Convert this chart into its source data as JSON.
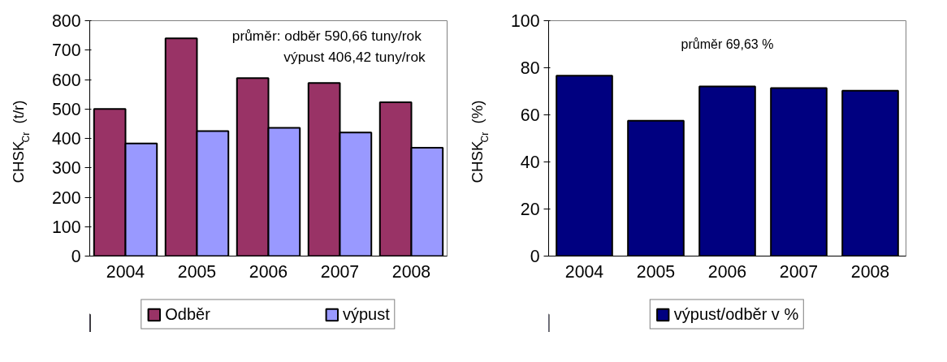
{
  "chart_data": [
    {
      "type": "bar",
      "categories": [
        "2004",
        "2005",
        "2006",
        "2007",
        "2008"
      ],
      "ylabel": "CHSK$_{Cr}$ (t/r)",
      "ylim": [
        0,
        800
      ],
      "yticks": [
        0,
        100,
        200,
        300,
        400,
        500,
        600,
        700,
        800
      ],
      "legend": "bottom",
      "grid": false,
      "series": [
        {
          "name": "Odběr",
          "color": "#993366",
          "values": [
            500,
            740,
            605,
            588,
            523
          ]
        },
        {
          "name": "výpust",
          "color": "#9999ff",
          "values": [
            383,
            425,
            436,
            420,
            368
          ]
        }
      ],
      "annotations": [
        "průměr: odběr   590,66 tuny/rok",
        "výpust  406,42 tuny/rok"
      ]
    },
    {
      "type": "bar",
      "categories": [
        "2004",
        "2005",
        "2006",
        "2007",
        "2008"
      ],
      "ylabel": "CHSK$_{Cr}$ (%)",
      "ylim": [
        0,
        100
      ],
      "yticks": [
        0,
        20,
        40,
        60,
        80,
        100
      ],
      "legend": "bottom",
      "grid": false,
      "series": [
        {
          "name": "výpust/odběr v %",
          "color": "#000080",
          "values": [
            76.6,
            57.5,
            72.1,
            71.4,
            70.3
          ]
        }
      ],
      "annotations": [
        "průměr 69,63 %"
      ]
    }
  ]
}
